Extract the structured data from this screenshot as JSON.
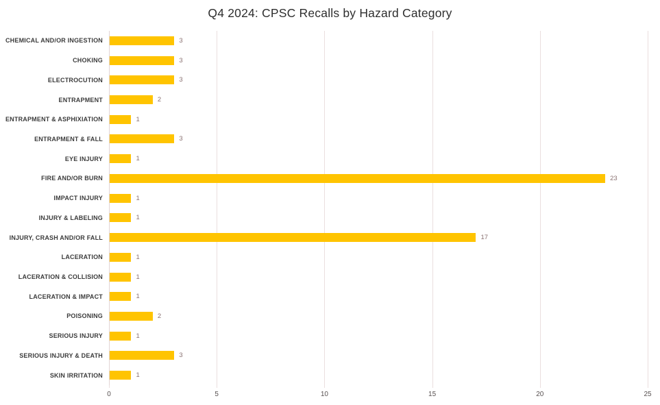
{
  "chart_data": {
    "type": "bar",
    "orientation": "horizontal",
    "title": "Q4 2024: CPSC Recalls by Hazard Category",
    "categories": [
      "CHEMICAL AND/OR INGESTION",
      "CHOKING",
      "ELECTROCUTION",
      "ENTRAPMENT",
      "ENTRAPMENT & ASPHIXIATION",
      "ENTRAPMENT & FALL",
      "EYE INJURY",
      "FIRE AND/OR BURN",
      "IMPACT INJURY",
      "INJURY & LABELING",
      "INJURY, CRASH AND/OR FALL",
      "LACERATION",
      "LACERATION & COLLISION",
      "LACERATION & IMPACT",
      "POISONING",
      "SERIOUS INJURY",
      "SERIOUS INJURY & DEATH",
      "SKIN IRRITATION"
    ],
    "values": [
      3,
      3,
      3,
      2,
      1,
      3,
      1,
      23,
      1,
      1,
      17,
      1,
      1,
      1,
      2,
      1,
      3,
      1
    ],
    "xlabel": "",
    "ylabel": "",
    "xlim": [
      0,
      25
    ],
    "x_ticks": [
      0,
      5,
      10,
      15,
      20,
      25
    ],
    "grid": "vertical",
    "legend": "none",
    "value_labels": true
  },
  "colors": {
    "bar": "#FFC400",
    "gridline": "#EADEDE",
    "axis_line": "#E3D4D4",
    "title_text": "#2e2e2e",
    "category_text": "#3b3b3b",
    "value_label_text": "#8a7272",
    "tick_text": "#585151"
  }
}
